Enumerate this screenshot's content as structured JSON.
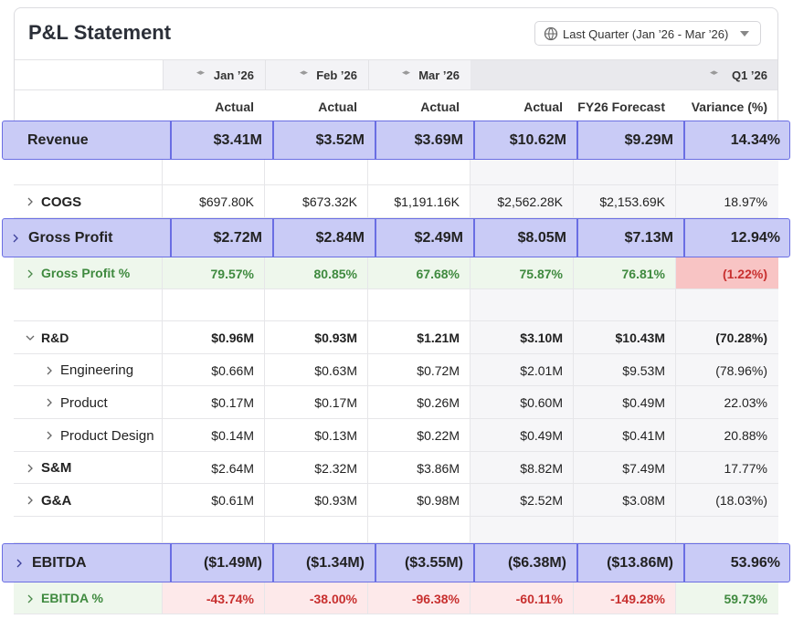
{
  "header": {
    "title": "P&L Statement",
    "period_selector": "Last Quarter (Jan ’26 - Mar ’26)"
  },
  "table": {
    "column_groups": [
      "Jan ’26",
      "Feb ’26",
      "Mar ’26",
      "Q1 ’26"
    ],
    "columns": [
      "Actual",
      "Actual",
      "Actual",
      "Actual",
      "FY26 Forecast",
      "Variance (%)"
    ],
    "rows": [
      {
        "label": "Revenue",
        "cells": [
          "$3.41M",
          "$3.52M",
          "$3.69M",
          "$10.62M",
          "$9.29M",
          "14.34%"
        ]
      },
      {
        "label": "COGS",
        "cells": [
          "$697.80K",
          "$673.32K",
          "$1,191.16K",
          "$2,562.28K",
          "$2,153.69K",
          "18.97%"
        ]
      },
      {
        "label": "Gross Profit",
        "cells": [
          "$2.72M",
          "$2.84M",
          "$2.49M",
          "$8.05M",
          "$7.13M",
          "12.94%"
        ]
      },
      {
        "label": "Gross Profit %",
        "cells": [
          "79.57%",
          "80.85%",
          "67.68%",
          "75.87%",
          "76.81%",
          "(1.22%)"
        ]
      },
      {
        "label": "R&D",
        "cells": [
          "$0.96M",
          "$0.93M",
          "$1.21M",
          "$3.10M",
          "$10.43M",
          "(70.28%)"
        ]
      },
      {
        "label": "Engineering",
        "cells": [
          "$0.66M",
          "$0.63M",
          "$0.72M",
          "$2.01M",
          "$9.53M",
          "(78.96%)"
        ]
      },
      {
        "label": "Product",
        "cells": [
          "$0.17M",
          "$0.17M",
          "$0.26M",
          "$0.60M",
          "$0.49M",
          "22.03%"
        ]
      },
      {
        "label": "Product Design",
        "cells": [
          "$0.14M",
          "$0.13M",
          "$0.22M",
          "$0.49M",
          "$0.41M",
          "20.88%"
        ]
      },
      {
        "label": "S&M",
        "cells": [
          "$2.64M",
          "$2.32M",
          "$3.86M",
          "$8.82M",
          "$7.49M",
          "17.77%"
        ]
      },
      {
        "label": "G&A",
        "cells": [
          "$0.61M",
          "$0.93M",
          "$0.98M",
          "$2.52M",
          "$3.08M",
          "(18.03%)"
        ]
      },
      {
        "label": "EBITDA",
        "cells": [
          "($1.49M)",
          "($1.34M)",
          "($3.55M)",
          "($6.38M)",
          "($13.86M)",
          "53.96%"
        ]
      },
      {
        "label": "EBITDA %",
        "cells": [
          "-43.74%",
          "-38.00%",
          "-96.38%",
          "-60.11%",
          "-149.28%",
          "59.73%"
        ]
      }
    ]
  }
}
